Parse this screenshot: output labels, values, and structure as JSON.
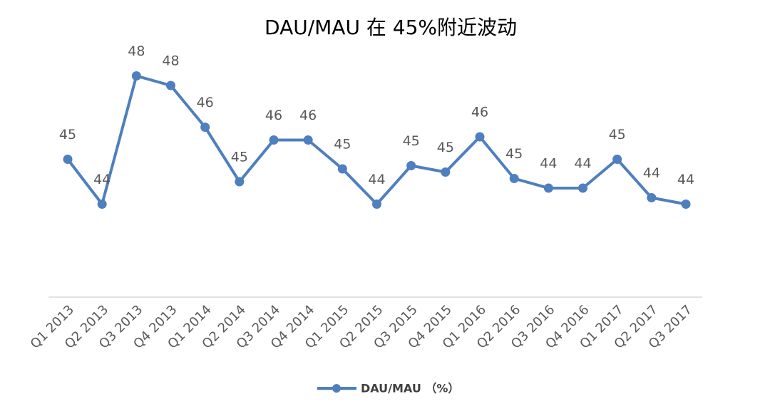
{
  "chart_data": {
    "type": "line",
    "title": "DAU/MAU 在 45%附近波动",
    "categories": [
      "Q1 2013",
      "Q2 2013",
      "Q3 2013",
      "Q4 2013",
      "Q1 2014",
      "Q2 2014",
      "Q3 2014",
      "Q4 2014",
      "Q1 2015",
      "Q2 2015",
      "Q3 2015",
      "Q4 2015",
      "Q1 2016",
      "Q2 2016",
      "Q3 2016",
      "Q4 2016",
      "Q1 2017",
      "Q2 2017",
      "Q3 2017"
    ],
    "series": [
      {
        "name": "DAU/MAU （%）",
        "color": "#4e7fbe",
        "values": [
          45.3,
          43.9,
          47.9,
          47.6,
          46.3,
          44.6,
          45.9,
          45.9,
          45.0,
          43.9,
          45.1,
          44.9,
          46.0,
          44.7,
          44.4,
          44.4,
          45.3,
          44.1,
          43.9
        ],
        "value_labels": [
          "45",
          "44",
          "48",
          "48",
          "46",
          "45",
          "46",
          "46",
          "45",
          "44",
          "45",
          "45",
          "46",
          "45",
          "44",
          "44",
          "45",
          "44",
          "44"
        ]
      }
    ],
    "ylim": [
      41,
      49
    ]
  }
}
